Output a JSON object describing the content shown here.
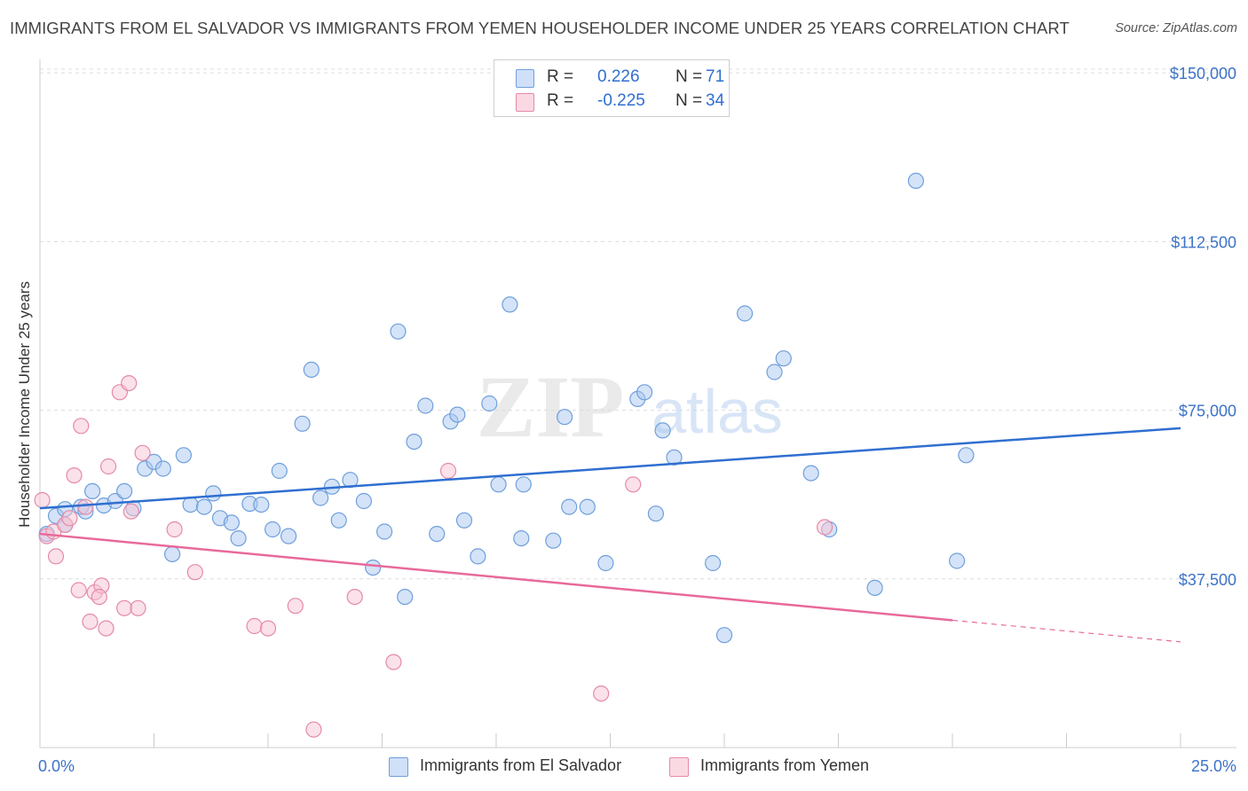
{
  "header": {
    "title": "IMMIGRANTS FROM EL SALVADOR VS IMMIGRANTS FROM YEMEN HOUSEHOLDER INCOME UNDER 25 YEARS CORRELATION CHART",
    "source": "Source: ZipAtlas.com"
  },
  "watermark": {
    "zip": "ZIP",
    "atlas": "atlas"
  },
  "legend": {
    "rows": [
      {
        "r_label": "R =",
        "r_value": "0.226",
        "n_label": "N =",
        "n_value": "71",
        "color": "#a9c8f0",
        "border": "#6f9fdc"
      },
      {
        "r_label": "R =",
        "r_value": "-0.225",
        "n_label": "N =",
        "n_value": "34",
        "color": "#f8c4d4",
        "border": "#e58aa8"
      }
    ]
  },
  "bottom_legend": {
    "series_a": "Immigrants from El Salvador",
    "series_b": "Immigrants from Yemen"
  },
  "chart_data": {
    "type": "scatter",
    "title": "IMMIGRANTS FROM EL SALVADOR VS IMMIGRANTS FROM YEMEN HOUSEHOLDER INCOME UNDER 25 YEARS CORRELATION CHART",
    "xlabel": "",
    "ylabel": "Householder Income Under 25 years",
    "xlim": [
      0,
      25
    ],
    "ylim": [
      0,
      152000
    ],
    "x_tick_labels": [
      "0.0%",
      "25.0%"
    ],
    "y_ticks": [
      37500,
      75000,
      112500,
      150000
    ],
    "y_tick_labels": [
      "$37,500",
      "$75,000",
      "$112,500",
      "$150,000"
    ],
    "grid": true,
    "legend_position": "top-center",
    "series": [
      {
        "name": "Immigrants from El Salvador",
        "color": "#6f9fdc",
        "fill": "#a9c8f0",
        "line_color": "#2f6fd0",
        "trend": {
          "x": [
            0,
            25
          ],
          "y": [
            53200,
            71000
          ],
          "dashed_from": null
        },
        "points": [
          [
            0.15,
            47500
          ],
          [
            0.35,
            51500
          ],
          [
            0.55,
            53000
          ],
          [
            0.9,
            53500
          ],
          [
            1.15,
            57000
          ],
          [
            1.4,
            53800
          ],
          [
            1.65,
            54800
          ],
          [
            1.85,
            57000
          ],
          [
            2.05,
            53200
          ],
          [
            2.3,
            62000
          ],
          [
            2.5,
            63500
          ],
          [
            2.7,
            62000
          ],
          [
            2.9,
            43000
          ],
          [
            3.15,
            65000
          ],
          [
            3.3,
            54000
          ],
          [
            3.6,
            53500
          ],
          [
            3.8,
            56500
          ],
          [
            3.95,
            51000
          ],
          [
            4.2,
            50000
          ],
          [
            4.35,
            46500
          ],
          [
            4.6,
            54200
          ],
          [
            4.85,
            54000
          ],
          [
            5.1,
            48500
          ],
          [
            5.25,
            61500
          ],
          [
            5.45,
            47000
          ],
          [
            5.75,
            72000
          ],
          [
            5.95,
            84000
          ],
          [
            6.15,
            55500
          ],
          [
            6.4,
            58000
          ],
          [
            6.55,
            50500
          ],
          [
            6.8,
            59500
          ],
          [
            7.1,
            54800
          ],
          [
            7.3,
            40000
          ],
          [
            7.55,
            48000
          ],
          [
            7.85,
            92500
          ],
          [
            8.0,
            33500
          ],
          [
            8.2,
            68000
          ],
          [
            8.45,
            76000
          ],
          [
            8.7,
            47500
          ],
          [
            9.0,
            72500
          ],
          [
            9.15,
            74000
          ],
          [
            9.3,
            50500
          ],
          [
            9.6,
            42500
          ],
          [
            9.85,
            76500
          ],
          [
            10.05,
            58500
          ],
          [
            10.3,
            98500
          ],
          [
            10.55,
            46500
          ],
          [
            10.6,
            58500
          ],
          [
            11.25,
            46000
          ],
          [
            11.5,
            73500
          ],
          [
            11.6,
            53500
          ],
          [
            12.0,
            53500
          ],
          [
            12.4,
            41000
          ],
          [
            13.1,
            77500
          ],
          [
            13.25,
            79000
          ],
          [
            13.5,
            52000
          ],
          [
            13.65,
            70500
          ],
          [
            13.9,
            64500
          ],
          [
            14.75,
            41000
          ],
          [
            15.0,
            25000
          ],
          [
            15.45,
            96500
          ],
          [
            16.1,
            83500
          ],
          [
            16.3,
            86500
          ],
          [
            16.9,
            61000
          ],
          [
            17.3,
            48500
          ],
          [
            18.3,
            35500
          ],
          [
            19.2,
            126000
          ],
          [
            20.1,
            41500
          ],
          [
            20.3,
            65000
          ],
          [
            0.55,
            49500
          ],
          [
            1.0,
            52500
          ]
        ]
      },
      {
        "name": "Immigrants from Yemen",
        "color": "#e58aa8",
        "fill": "#f8c4d4",
        "line_color": "#e8699a",
        "trend": {
          "x": [
            0,
            25
          ],
          "y": [
            47500,
            23500
          ],
          "dashed_from": 20.0
        },
        "points": [
          [
            0.05,
            55000
          ],
          [
            0.15,
            47000
          ],
          [
            0.3,
            48000
          ],
          [
            0.35,
            42500
          ],
          [
            0.55,
            49500
          ],
          [
            0.65,
            51000
          ],
          [
            0.75,
            60500
          ],
          [
            0.85,
            35000
          ],
          [
            0.9,
            71500
          ],
          [
            1.0,
            53500
          ],
          [
            1.1,
            28000
          ],
          [
            1.2,
            34500
          ],
          [
            1.35,
            36000
          ],
          [
            1.45,
            26500
          ],
          [
            1.5,
            62500
          ],
          [
            1.75,
            79000
          ],
          [
            1.85,
            31000
          ],
          [
            1.95,
            81000
          ],
          [
            2.0,
            52500
          ],
          [
            2.15,
            31000
          ],
          [
            2.25,
            65500
          ],
          [
            2.95,
            48500
          ],
          [
            3.4,
            39000
          ],
          [
            4.7,
            27000
          ],
          [
            5.0,
            26500
          ],
          [
            5.6,
            31500
          ],
          [
            6.0,
            4000
          ],
          [
            6.9,
            33500
          ],
          [
            7.75,
            19000
          ],
          [
            8.95,
            61500
          ],
          [
            12.3,
            12000
          ],
          [
            13.0,
            58500
          ],
          [
            17.2,
            49000
          ],
          [
            1.3,
            33500
          ]
        ]
      }
    ]
  }
}
